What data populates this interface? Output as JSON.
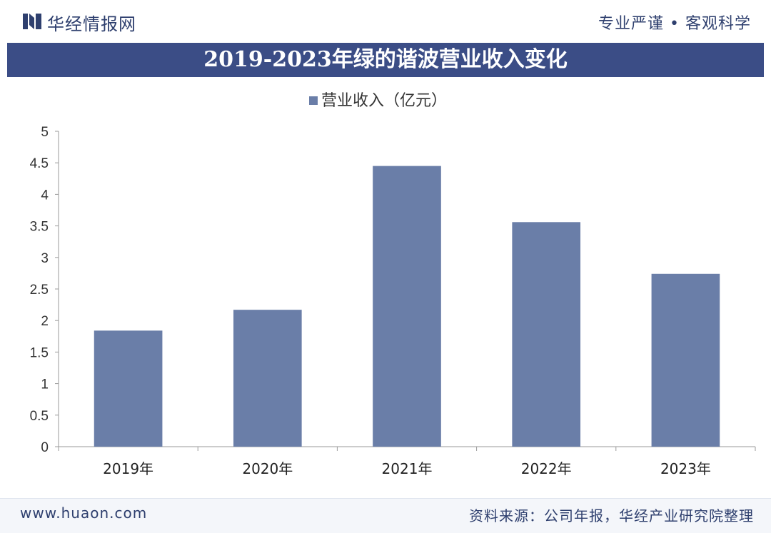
{
  "header": {
    "brand": "华经情报网",
    "motto": "专业严谨 • 客观科学"
  },
  "chart_data": {
    "type": "bar",
    "title": "2019-2023年绿的谐波营业收入变化",
    "categories": [
      "2019年",
      "2020年",
      "2021年",
      "2022年",
      "2023年"
    ],
    "series": [
      {
        "name": "营业收入（亿元）",
        "values": [
          1.84,
          2.17,
          4.45,
          3.56,
          2.74
        ]
      }
    ],
    "ylim": [
      0,
      5
    ],
    "yticks": [
      "0",
      "0.5",
      "1",
      "1.5",
      "2",
      "2.5",
      "3",
      "3.5",
      "4",
      "4.5",
      "5"
    ],
    "legend_position": "top",
    "grid": false,
    "bar_color": "#6a7ea8"
  },
  "footer": {
    "url": "www.huaon.com",
    "source": "资料来源：公司年报，华经产业研究院整理"
  }
}
